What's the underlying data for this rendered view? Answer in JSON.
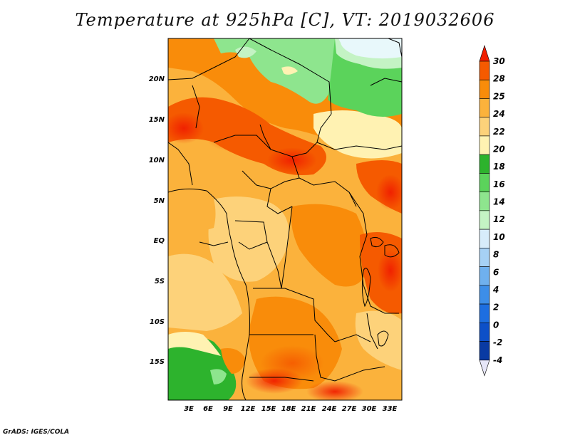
{
  "title": "Temperature at 925hPa [C], VT: 2019032606",
  "credit": "GrADS: IGES/COLA",
  "map": {
    "lon_labels": [
      "3E",
      "6E",
      "9E",
      "12E",
      "15E",
      "18E",
      "21E",
      "24E",
      "27E",
      "30E",
      "33E"
    ],
    "lat_labels": [
      "20N",
      "15N",
      "10N",
      "5N",
      "EQ",
      "5S",
      "10S",
      "15S"
    ]
  },
  "colorbar": {
    "labels": [
      "30",
      "28",
      "25",
      "24",
      "22",
      "20",
      "18",
      "16",
      "14",
      "12",
      "10",
      "8",
      "6",
      "4",
      "2",
      "0",
      "-2",
      "-4"
    ],
    "colors": [
      "#f01e00",
      "#f55a00",
      "#f98c0a",
      "#fbb23c",
      "#fdd27a",
      "#fff2b2",
      "#2db32d",
      "#5bd35b",
      "#8ee58e",
      "#c4f3c4",
      "#d7ecfa",
      "#a6d1f5",
      "#6fb0ee",
      "#3d8ee8",
      "#1d6ee0",
      "#0d50c8",
      "#093aa3",
      "#05197a"
    ]
  },
  "colors": {
    "hot": "#f01e00",
    "warm": "#f98c0a",
    "mild": "#fdd27a",
    "cool_green": "#2db32d",
    "cold_blue": "#d7ecfa"
  }
}
